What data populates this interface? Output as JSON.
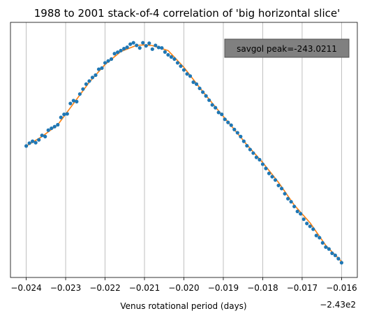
{
  "chart_data": {
    "type": "scatter",
    "title": "1988 to 2001 stack-of-4 correlation of 'big horizontal slice'",
    "xlabel": "Venus rotational period (days)",
    "ylabel": "",
    "x_offset_label": "−2.43e2",
    "x_tick_labels": [
      "−0.024",
      "−0.023",
      "−0.022",
      "−0.021",
      "−0.020",
      "−0.019",
      "−0.018",
      "−0.017",
      "−0.016"
    ],
    "x_ticks": [
      -243.024,
      -243.023,
      -243.022,
      -243.021,
      -243.02,
      -243.019,
      -243.018,
      -243.017,
      -243.016
    ],
    "xlim": [
      -243.0244,
      -243.0156
    ],
    "ylim": [
      0.0,
      1.0
    ],
    "y_ticks_shown": false,
    "grid": "vertical",
    "annotation": "savgol peak=-243.0211",
    "series": [
      {
        "kind": "points",
        "color": "#1f77b4",
        "x": [
          -243.024,
          -243.02392,
          -243.02384,
          -243.02376,
          -243.02368,
          -243.0236,
          -243.02352,
          -243.02344,
          -243.02336,
          -243.02328,
          -243.0232,
          -243.02312,
          -243.02304,
          -243.02296,
          -243.02288,
          -243.0228,
          -243.02272,
          -243.02264,
          -243.02256,
          -243.02248,
          -243.0224,
          -243.02232,
          -243.02224,
          -243.02216,
          -243.02208,
          -243.022,
          -243.02192,
          -243.02184,
          -243.02176,
          -243.02168,
          -243.0216,
          -243.02152,
          -243.02144,
          -243.02136,
          -243.02128,
          -243.0212,
          -243.02112,
          -243.02104,
          -243.02096,
          -243.02088,
          -243.0208,
          -243.02072,
          -243.02064,
          -243.02056,
          -243.02048,
          -243.0204,
          -243.02032,
          -243.02024,
          -243.02016,
          -243.02008,
          -243.02,
          -243.01992,
          -243.01984,
          -243.01976,
          -243.01968,
          -243.0196,
          -243.01952,
          -243.01944,
          -243.01936,
          -243.01928,
          -243.0192,
          -243.01912,
          -243.01904,
          -243.01896,
          -243.01888,
          -243.0188,
          -243.01872,
          -243.01864,
          -243.01856,
          -243.01848,
          -243.0184,
          -243.01832,
          -243.01824,
          -243.01816,
          -243.01808,
          -243.018,
          -243.01792,
          -243.01784,
          -243.01776,
          -243.01768,
          -243.0176,
          -243.01752,
          -243.01744,
          -243.01736,
          -243.01728,
          -243.0172,
          -243.01712,
          -243.01704,
          -243.01696,
          -243.01688,
          -243.0168,
          -243.01672,
          -243.01664,
          -243.01656,
          -243.01648,
          -243.0164,
          -243.01632,
          -243.01624,
          -243.01616,
          -243.01608,
          -243.016
        ],
        "y": [
          0.521,
          0.533,
          0.541,
          0.535,
          0.547,
          0.566,
          0.561,
          0.588,
          0.596,
          0.603,
          0.611,
          0.642,
          0.655,
          0.657,
          0.701,
          0.713,
          0.709,
          0.741,
          0.762,
          0.783,
          0.796,
          0.811,
          0.821,
          0.846,
          0.851,
          0.873,
          0.881,
          0.889,
          0.912,
          0.918,
          0.925,
          0.933,
          0.939,
          0.952,
          0.958,
          0.947,
          0.936,
          0.958,
          0.945,
          0.956,
          0.931,
          0.947,
          0.938,
          0.936,
          0.919,
          0.907,
          0.898,
          0.889,
          0.873,
          0.859,
          0.843,
          0.826,
          0.817,
          0.791,
          0.783,
          0.765,
          0.749,
          0.733,
          0.715,
          0.695,
          0.683,
          0.663,
          0.655,
          0.634,
          0.621,
          0.609,
          0.591,
          0.577,
          0.561,
          0.541,
          0.522,
          0.506,
          0.491,
          0.473,
          0.463,
          0.444,
          0.426,
          0.405,
          0.391,
          0.377,
          0.354,
          0.341,
          0.319,
          0.298,
          0.285,
          0.265,
          0.244,
          0.234,
          0.211,
          0.193,
          0.181,
          0.169,
          0.142,
          0.133,
          0.111,
          0.093,
          0.085,
          0.067,
          0.058,
          0.044,
          0.027
        ]
      },
      {
        "kind": "line",
        "color": "#ff7f0e",
        "x": [
          -243.024,
          -243.0236,
          -243.0232,
          -243.0228,
          -243.0224,
          -243.022,
          -243.0216,
          -243.0212,
          -243.021,
          -243.0208,
          -243.0204,
          -243.02,
          -243.0196,
          -243.0192,
          -243.0188,
          -243.0184,
          -243.018,
          -243.0176,
          -243.0172,
          -243.0168,
          -243.0164,
          -243.016
        ],
        "y": [
          0.521,
          0.561,
          0.611,
          0.701,
          0.791,
          0.866,
          0.921,
          0.947,
          0.949,
          0.946,
          0.925,
          0.854,
          0.768,
          0.686,
          0.607,
          0.526,
          0.451,
          0.367,
          0.271,
          0.196,
          0.1,
          0.032
        ]
      }
    ]
  }
}
